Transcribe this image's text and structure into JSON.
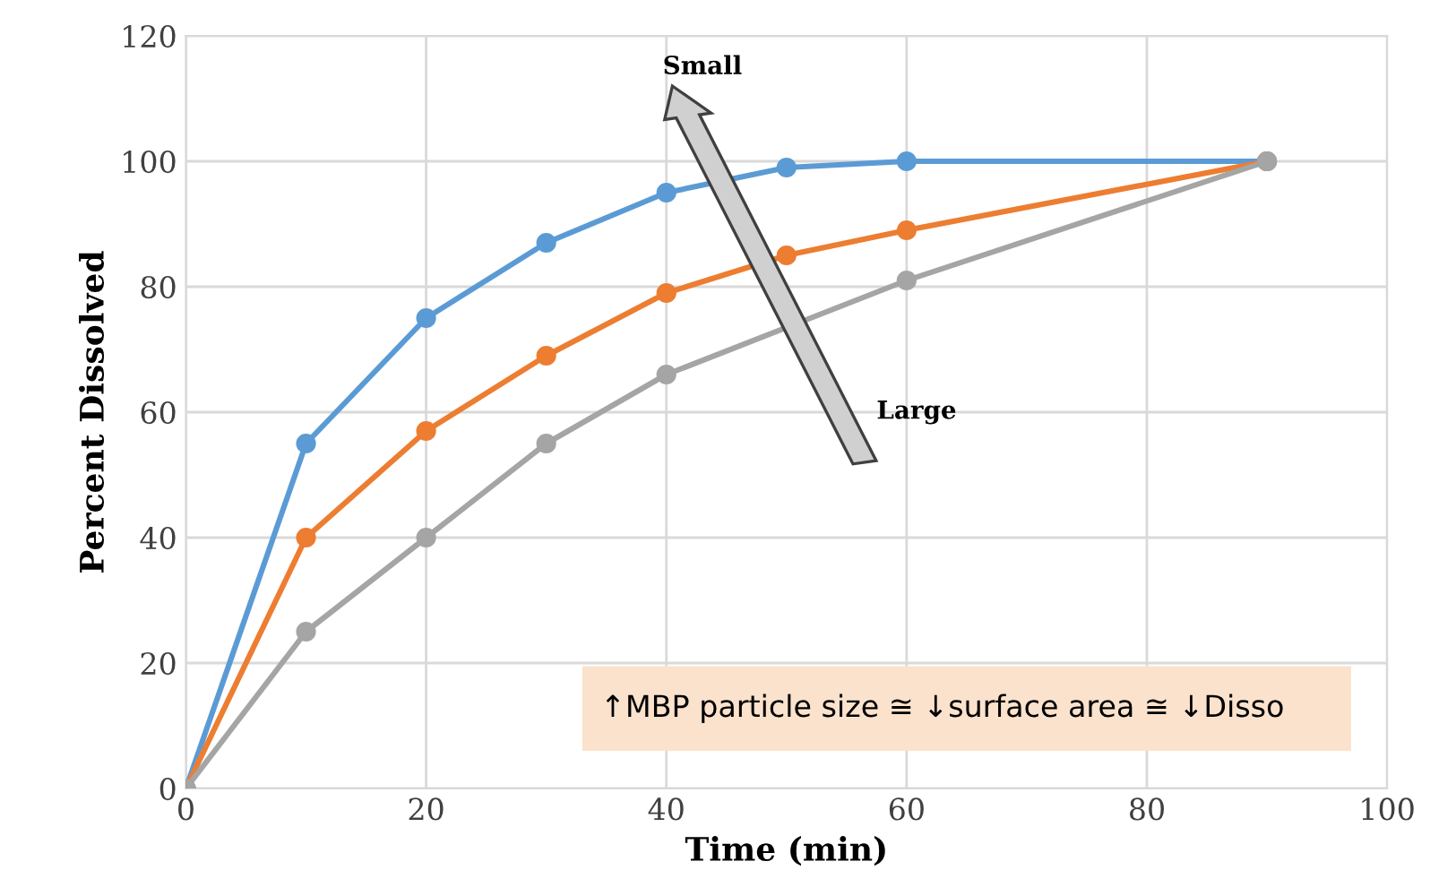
{
  "chart_data": {
    "type": "line",
    "xlabel": "Time (min)",
    "ylabel": "Percent Dissolved",
    "x": [
      0,
      10,
      20,
      30,
      40,
      50,
      60,
      90
    ],
    "series": [
      {
        "color": "#5b9bd5",
        "values": [
          0,
          55,
          75,
          87,
          95,
          99,
          100,
          100
        ]
      },
      {
        "color": "#ed7d31",
        "values": [
          0,
          40,
          57,
          69,
          79,
          85,
          89,
          100
        ]
      },
      {
        "color": "#a5a5a5",
        "x": [
          0,
          10,
          20,
          30,
          40,
          60,
          90
        ],
        "values": [
          0,
          25,
          40,
          55,
          66,
          81,
          100
        ]
      }
    ],
    "xlim": [
      0,
      100
    ],
    "xticks": [
      0,
      20,
      40,
      60,
      80,
      100
    ],
    "ylim": [
      0,
      120
    ],
    "yticks": [
      0,
      20,
      40,
      60,
      80,
      100,
      120
    ],
    "grid": true,
    "marker": "circle",
    "line_style": "solid",
    "annotations": [
      "Small",
      "Large",
      "↑MBP particle size ≅ ↓surface area ≅ ↓Disso"
    ]
  }
}
